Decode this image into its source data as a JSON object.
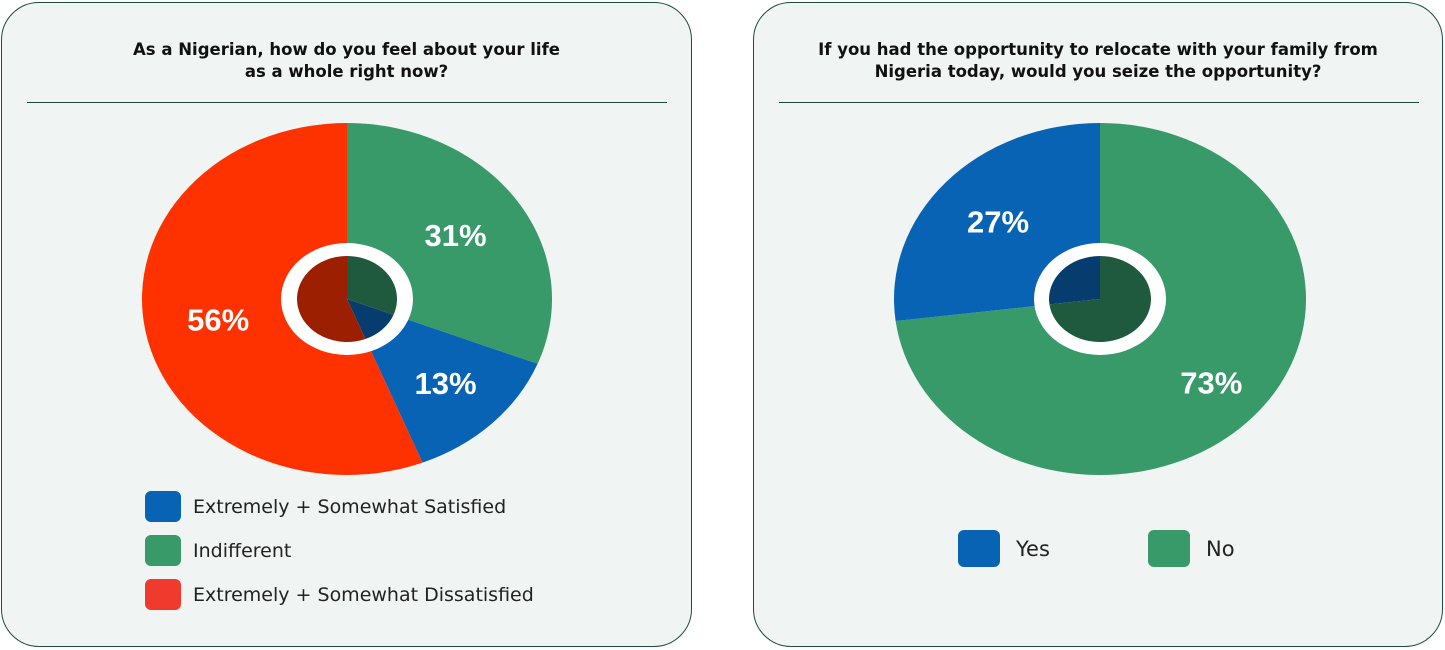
{
  "chart_data": [
    {
      "type": "pie",
      "title": "As a Nigerian, how do you feel about your life\nas a whole right now?",
      "categories": [
        "Extremely + Somewhat Satisfied",
        "Indifferent",
        "Extremely + Somewhat Dissatisfied"
      ],
      "values": [
        13,
        31,
        56
      ],
      "labels": [
        "13%",
        "31%",
        "56%"
      ],
      "colors": [
        "#0863b5",
        "#379a68",
        "#fd3200"
      ],
      "legend_colors": [
        "#0863b5",
        "#379a68",
        "#ef3a2d"
      ],
      "inner_colors": [
        "#073d6e",
        "#205a3e",
        "#9b1f00"
      ],
      "legend": [
        "Extremely + Somewhat Satisfied",
        "Indifferent",
        "Extremely + Somewhat Dissatisfied"
      ],
      "legend_position": "bottom"
    },
    {
      "type": "pie",
      "title": "If you had the opportunity to relocate with your family from\nNigeria today, would you seize the opportunity?",
      "categories": [
        "Yes",
        "No"
      ],
      "values": [
        27,
        73
      ],
      "labels": [
        "27%",
        "73%"
      ],
      "colors": [
        "#0863b5",
        "#379a68"
      ],
      "legend_colors": [
        "#0863b5",
        "#379a68"
      ],
      "inner_colors": [
        "#073d6e",
        "#205a3e"
      ],
      "legend": [
        "Yes",
        "No"
      ],
      "legend_position": "bottom"
    }
  ]
}
